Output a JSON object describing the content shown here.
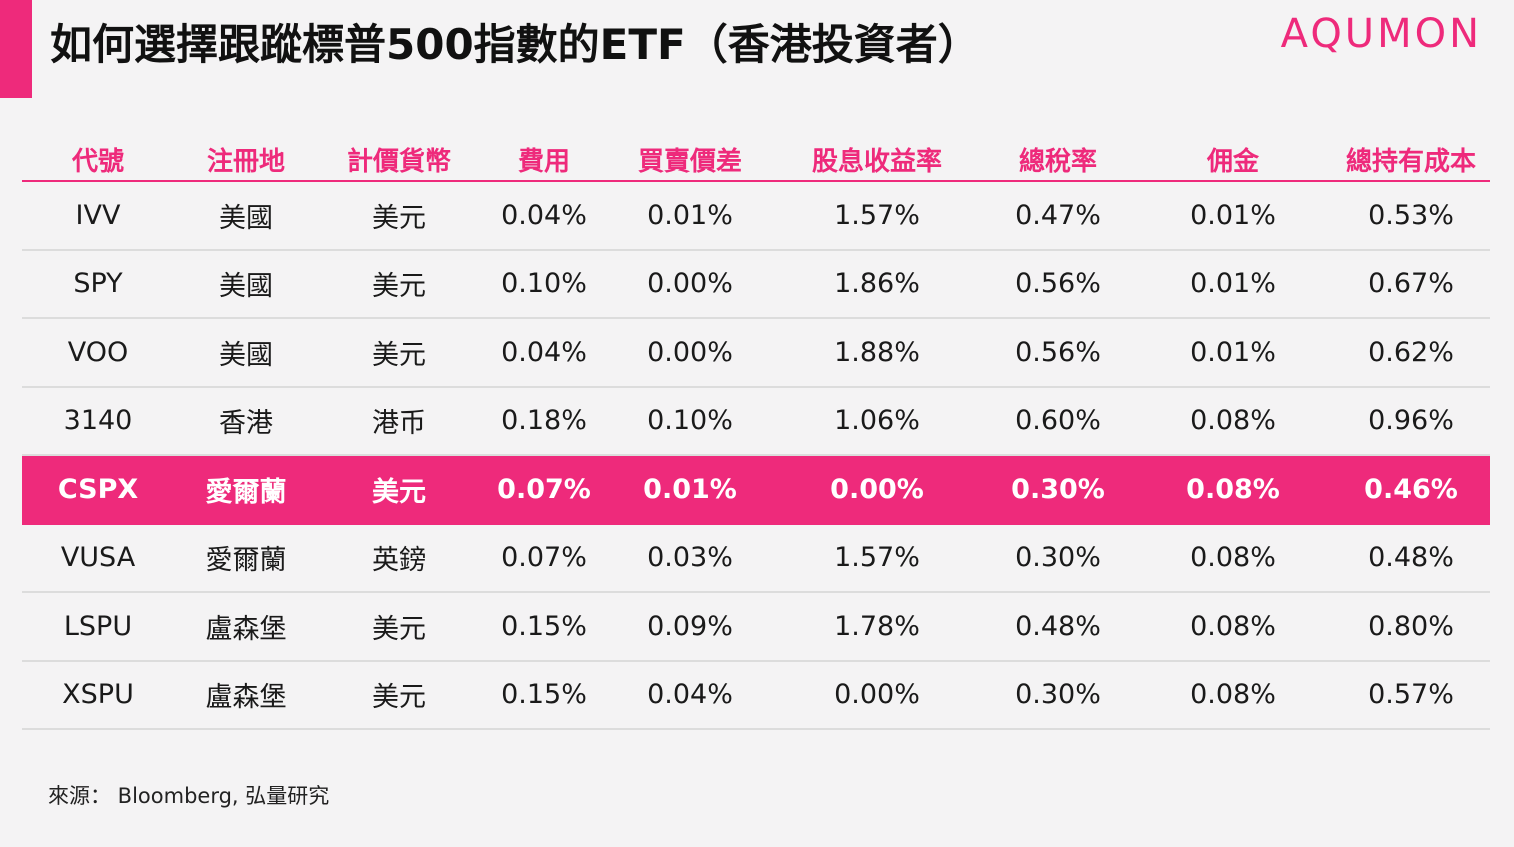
{
  "header": {
    "title": "如何選擇跟蹤標普500指數的ETF（香港投資者）",
    "brand": "AQUMON",
    "accent_color": "#ee2a7b"
  },
  "table": {
    "columns": [
      "代號",
      "注冊地",
      "計價貨幣",
      "費用",
      "買賣價差",
      "股息收益率",
      "總稅率",
      "佣金",
      "總持有成本"
    ],
    "rows": [
      {
        "cells": [
          "IVV",
          "美國",
          "美元",
          "0.04%",
          "0.01%",
          "1.57%",
          "0.47%",
          "0.01%",
          "0.53%"
        ],
        "highlight": false
      },
      {
        "cells": [
          "SPY",
          "美國",
          "美元",
          "0.10%",
          "0.00%",
          "1.86%",
          "0.56%",
          "0.01%",
          "0.67%"
        ],
        "highlight": false
      },
      {
        "cells": [
          "VOO",
          "美國",
          "美元",
          "0.04%",
          "0.00%",
          "1.88%",
          "0.56%",
          "0.01%",
          "0.62%"
        ],
        "highlight": false
      },
      {
        "cells": [
          "3140",
          "香港",
          "港币",
          "0.18%",
          "0.10%",
          "1.06%",
          "0.60%",
          "0.08%",
          "0.96%"
        ],
        "highlight": false
      },
      {
        "cells": [
          "CSPX",
          "愛爾蘭",
          "美元",
          "0.07%",
          "0.01%",
          "0.00%",
          "0.30%",
          "0.08%",
          "0.46%"
        ],
        "highlight": true
      },
      {
        "cells": [
          "VUSA",
          "愛爾蘭",
          "英鎊",
          "0.07%",
          "0.03%",
          "1.57%",
          "0.30%",
          "0.08%",
          "0.48%"
        ],
        "highlight": false
      },
      {
        "cells": [
          "LSPU",
          "盧森堡",
          "美元",
          "0.15%",
          "0.09%",
          "1.78%",
          "0.48%",
          "0.08%",
          "0.80%"
        ],
        "highlight": false
      },
      {
        "cells": [
          "XSPU",
          "盧森堡",
          "美元",
          "0.15%",
          "0.04%",
          "0.00%",
          "0.30%",
          "0.08%",
          "0.57%"
        ],
        "highlight": false
      }
    ]
  },
  "footer": {
    "source": "來源： Bloomberg, 弘量研究"
  }
}
